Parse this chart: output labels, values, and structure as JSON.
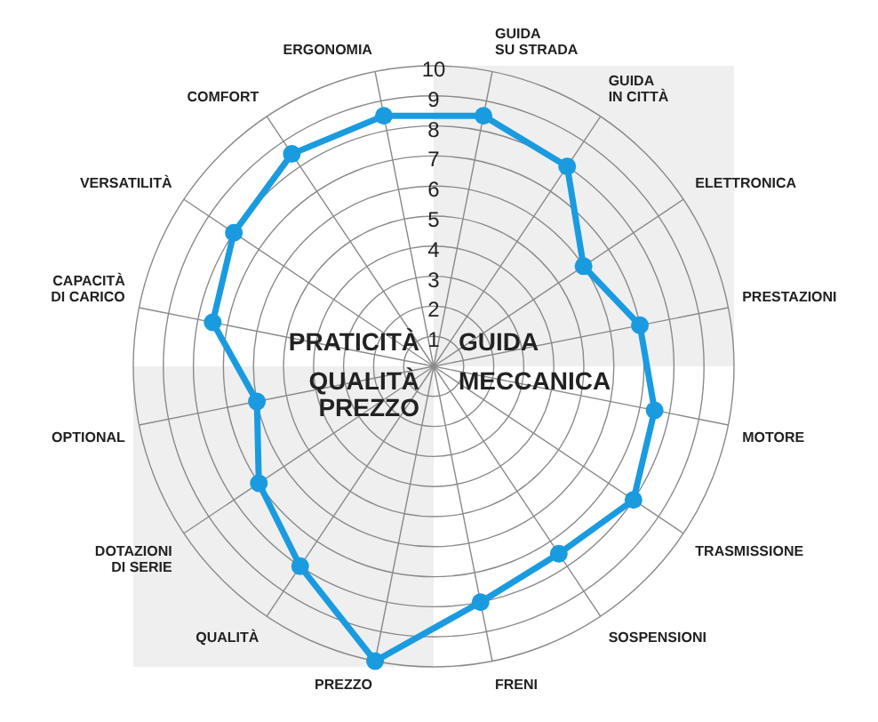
{
  "chart_data": {
    "type": "radar",
    "categories": [
      "ERGONOMIA",
      "GUIDA\nSU STRADA",
      "GUIDA\nIN CITTÀ",
      "ELETTRONICA",
      "PRESTAZIONI",
      "MOTORE",
      "TRASMISSIONE",
      "SOSPENSIONI",
      "FRENI",
      "PREZZO",
      "QUALITÀ",
      "DOTAZIONI\nDI SERIE",
      "OPTIONAL",
      "CAPACITÀ\nDI CARICO",
      "VERSATILITÀ",
      "COMFORT"
    ],
    "series": [
      {
        "color": "#1a9be0",
        "values": [
          8.5,
          8.5,
          8,
          6,
          7,
          7.5,
          8,
          7.5,
          8,
          10,
          8,
          7,
          6,
          7.5,
          8,
          8.5
        ]
      }
    ],
    "ylim": [
      0,
      10
    ],
    "yticks": [
      1,
      2,
      3,
      4,
      5,
      6,
      7,
      8,
      9,
      10
    ],
    "grid": true,
    "marker": "circle",
    "annotations": [
      "PRATICITÀ",
      "GUIDA",
      "QUALITÀ\nPREZZO",
      "MECCANICA"
    ]
  }
}
